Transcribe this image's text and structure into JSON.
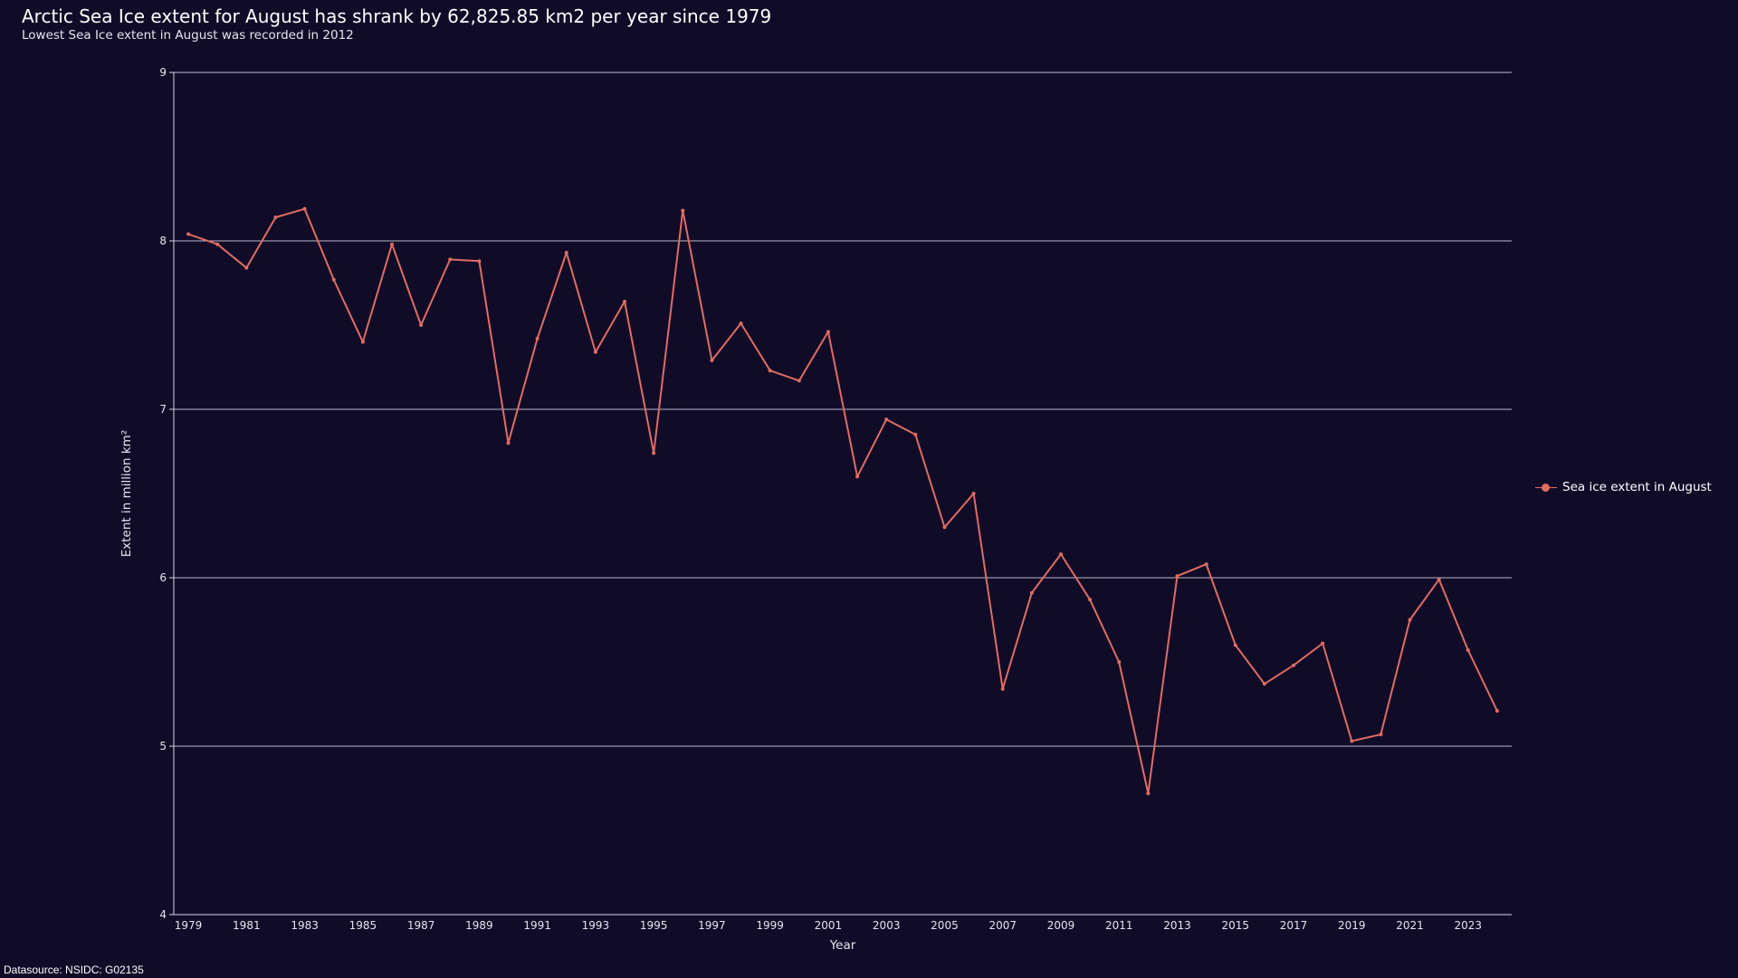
{
  "header": {
    "title": "Arctic Sea Ice extent for August has shrank by 62,825.85 km2 per year since 1979",
    "subtitle": "Lowest Sea Ice extent in August was recorded in 2012"
  },
  "footer": {
    "source": "Datasource: NSIDC: G02135"
  },
  "colors": {
    "background": "#100c28",
    "series": "#e06c64",
    "gridline": "#d9d6e3"
  },
  "chart_data": {
    "type": "line",
    "xlabel": "Year",
    "ylabel": "Extent in million km²",
    "ylim": [
      4,
      9
    ],
    "y_ticks": [
      "4",
      "5",
      "6",
      "7",
      "8",
      "9"
    ],
    "x_ticks": [
      "1979",
      "1981",
      "1983",
      "1985",
      "1987",
      "1989",
      "1991",
      "1993",
      "1995",
      "1997",
      "1999",
      "2001",
      "2003",
      "2005",
      "2007",
      "2009",
      "2011",
      "2013",
      "2015",
      "2017",
      "2019",
      "2021",
      "2023"
    ],
    "xlim": [
      1978.5,
      2024.5
    ],
    "grid": true,
    "legend_position": "right",
    "series": [
      {
        "name": "Sea ice extent in August",
        "x": [
          1979,
          1980,
          1981,
          1982,
          1983,
          1984,
          1985,
          1986,
          1987,
          1988,
          1989,
          1990,
          1991,
          1992,
          1993,
          1994,
          1995,
          1996,
          1997,
          1998,
          1999,
          2000,
          2001,
          2002,
          2003,
          2004,
          2005,
          2006,
          2007,
          2008,
          2009,
          2010,
          2011,
          2012,
          2013,
          2014,
          2015,
          2016,
          2017,
          2018,
          2019,
          2020,
          2021,
          2022,
          2023,
          2024
        ],
        "values": [
          8.04,
          7.98,
          7.84,
          8.14,
          8.19,
          7.77,
          7.4,
          7.98,
          7.5,
          7.89,
          7.88,
          6.8,
          7.42,
          7.93,
          7.34,
          7.64,
          6.74,
          8.18,
          7.29,
          7.51,
          7.23,
          7.17,
          7.46,
          6.6,
          6.94,
          6.85,
          6.3,
          6.5,
          5.34,
          5.91,
          6.14,
          5.87,
          5.5,
          4.72,
          6.01,
          6.08,
          5.6,
          5.37,
          5.48,
          5.61,
          5.03,
          5.07,
          5.75,
          5.99,
          5.57,
          5.21
        ]
      }
    ]
  }
}
